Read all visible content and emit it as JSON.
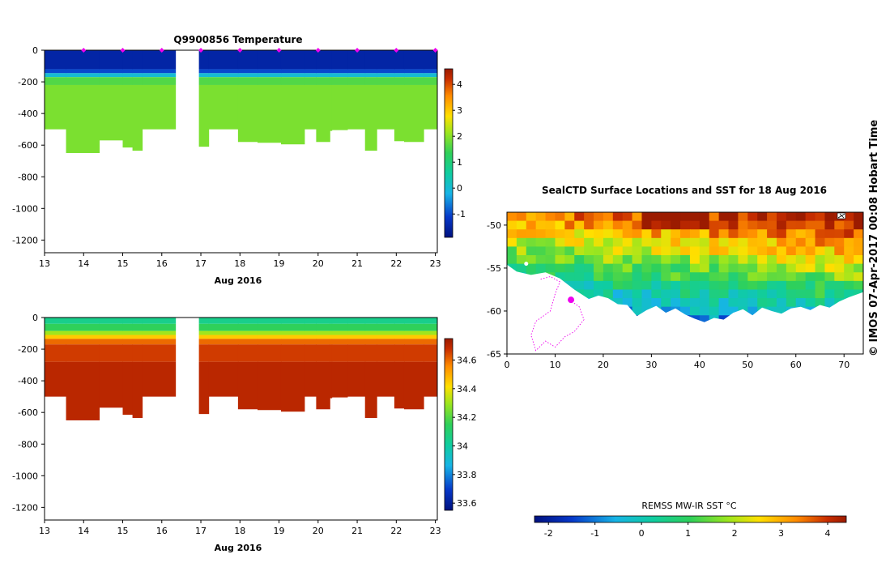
{
  "colors": {
    "cold": "#00117f",
    "cold2": "#0638c9",
    "cyan": "#17b4e6",
    "teal": "#0fcda0",
    "green": "#2fd05a",
    "lime": "#9be61e",
    "yellow": "#ffe000",
    "orange": "#ff8b00",
    "red": "#c82d00",
    "darkred": "#9b1b00",
    "land": "#ffffff",
    "track": "#ee00ee"
  },
  "chart_data": [
    {
      "id": "temperature-section",
      "type": "heatmap",
      "title": "Q9900856  Temperature",
      "xlabel": "Aug 2016",
      "ylabel": "",
      "xlim": [
        13,
        23.05
      ],
      "ylim": [
        -1280,
        0
      ],
      "xticks": [
        13,
        14,
        15,
        16,
        17,
        18,
        19,
        20,
        21,
        22,
        23
      ],
      "yticks": [
        0,
        -200,
        -400,
        -600,
        -800,
        -1000,
        -1200
      ],
      "gap": [
        16.35,
        16.95
      ],
      "surface_markers": [
        14.0,
        15.0,
        16.0,
        17.0,
        18.0,
        19.0,
        20.0,
        21.0,
        22.0,
        23.0
      ],
      "profile_bottoms": [
        {
          "x0": 13.0,
          "x1": 13.55,
          "depth": -500
        },
        {
          "x0": 13.55,
          "x1": 14.4,
          "depth": -650
        },
        {
          "x0": 14.4,
          "x1": 15.0,
          "depth": -570
        },
        {
          "x0": 15.0,
          "x1": 15.25,
          "depth": -615
        },
        {
          "x0": 15.25,
          "x1": 15.5,
          "depth": -635
        },
        {
          "x0": 15.5,
          "x1": 16.35,
          "depth": -500
        },
        {
          "x0": 16.95,
          "x1": 17.2,
          "depth": -610
        },
        {
          "x0": 17.2,
          "x1": 17.95,
          "depth": -500
        },
        {
          "x0": 17.95,
          "x1": 18.45,
          "depth": -580
        },
        {
          "x0": 18.45,
          "x1": 19.05,
          "depth": -585
        },
        {
          "x0": 19.05,
          "x1": 19.65,
          "depth": -595
        },
        {
          "x0": 19.65,
          "x1": 19.95,
          "depth": -500
        },
        {
          "x0": 19.95,
          "x1": 20.3,
          "depth": -580
        },
        {
          "x0": 20.3,
          "x1": 20.35,
          "depth": -510
        },
        {
          "x0": 20.35,
          "x1": 20.75,
          "depth": -505
        },
        {
          "x0": 20.75,
          "x1": 21.2,
          "depth": -500
        },
        {
          "x0": 21.2,
          "x1": 21.5,
          "depth": -635
        },
        {
          "x0": 21.5,
          "x1": 21.95,
          "depth": -500
        },
        {
          "x0": 21.95,
          "x1": 22.2,
          "depth": -575
        },
        {
          "x0": 22.2,
          "x1": 22.7,
          "depth": -580
        },
        {
          "x0": 22.7,
          "x1": 23.05,
          "depth": -500
        }
      ],
      "layers": [
        {
          "from": 0,
          "to": -120,
          "value": -1.5
        },
        {
          "from": -120,
          "to": -145,
          "value": -1.0
        },
        {
          "from": -145,
          "to": -170,
          "value": 0.0
        },
        {
          "from": -170,
          "to": -220,
          "value": 1.6
        },
        {
          "from": -220,
          "to": -9999,
          "value": 1.9
        }
      ],
      "colorbar": {
        "min": -1.9,
        "max": 4.6,
        "ticks": [
          4,
          3,
          2,
          1,
          0,
          -1
        ]
      }
    },
    {
      "id": "salinity-section",
      "type": "heatmap",
      "title": "",
      "xlabel": "Aug 2016",
      "ylabel": "",
      "xlim": [
        13,
        23.05
      ],
      "ylim": [
        -1280,
        0
      ],
      "xticks": [
        13,
        14,
        15,
        16,
        17,
        18,
        19,
        20,
        21,
        22,
        23
      ],
      "yticks": [
        0,
        -200,
        -400,
        -600,
        -800,
        -1000,
        -1200
      ],
      "gap": [
        16.35,
        16.95
      ],
      "profile_bottoms": [
        {
          "x0": 13.0,
          "x1": 13.55,
          "depth": -500
        },
        {
          "x0": 13.55,
          "x1": 14.4,
          "depth": -650
        },
        {
          "x0": 14.4,
          "x1": 15.0,
          "depth": -570
        },
        {
          "x0": 15.0,
          "x1": 15.25,
          "depth": -615
        },
        {
          "x0": 15.25,
          "x1": 15.5,
          "depth": -635
        },
        {
          "x0": 15.5,
          "x1": 16.35,
          "depth": -500
        },
        {
          "x0": 16.95,
          "x1": 17.2,
          "depth": -610
        },
        {
          "x0": 17.2,
          "x1": 17.95,
          "depth": -500
        },
        {
          "x0": 17.95,
          "x1": 18.45,
          "depth": -580
        },
        {
          "x0": 18.45,
          "x1": 19.05,
          "depth": -585
        },
        {
          "x0": 19.05,
          "x1": 19.65,
          "depth": -595
        },
        {
          "x0": 19.65,
          "x1": 19.95,
          "depth": -500
        },
        {
          "x0": 19.95,
          "x1": 20.3,
          "depth": -580
        },
        {
          "x0": 20.3,
          "x1": 20.35,
          "depth": -510
        },
        {
          "x0": 20.35,
          "x1": 20.75,
          "depth": -505
        },
        {
          "x0": 20.75,
          "x1": 21.2,
          "depth": -500
        },
        {
          "x0": 21.2,
          "x1": 21.5,
          "depth": -635
        },
        {
          "x0": 21.5,
          "x1": 21.95,
          "depth": -500
        },
        {
          "x0": 21.95,
          "x1": 22.2,
          "depth": -575
        },
        {
          "x0": 22.2,
          "x1": 22.7,
          "depth": -580
        },
        {
          "x0": 22.7,
          "x1": 23.05,
          "depth": -500
        }
      ],
      "layers": [
        {
          "from": 0,
          "to": -40,
          "value": 34.05
        },
        {
          "from": -40,
          "to": -85,
          "value": 34.15
        },
        {
          "from": -85,
          "to": -110,
          "value": 34.3
        },
        {
          "from": -110,
          "to": -135,
          "value": 34.45
        },
        {
          "from": -135,
          "to": -170,
          "value": 34.6
        },
        {
          "from": -170,
          "to": -280,
          "value": 34.66
        },
        {
          "from": -280,
          "to": -9999,
          "value": 34.7
        }
      ],
      "colorbar": {
        "min": 33.55,
        "max": 34.75,
        "ticks": [
          34.6,
          34.4,
          34.2,
          34,
          33.8,
          33.6
        ]
      }
    },
    {
      "id": "sst-map",
      "type": "heatmap",
      "title": "SealCTD Surface Locations and SST for 18 Aug 2016",
      "xlabel": "",
      "ylabel": "",
      "xlim": [
        0,
        74
      ],
      "ylim": [
        -65,
        -48.5
      ],
      "xticks": [
        0,
        10,
        20,
        30,
        40,
        50,
        60,
        70
      ],
      "yticks": [
        -50,
        -55,
        -60,
        -65
      ],
      "colorbar": {
        "label": "REMSS MW-IR SST °C",
        "min": -2.3,
        "max": 4.4,
        "ticks": [
          -2,
          -1,
          0,
          1,
          2,
          3,
          4
        ]
      },
      "seal_location": {
        "lon": 13.3,
        "lat": -58.7
      },
      "ice_edge": [
        [
          0,
          -54.6
        ],
        [
          2,
          -55.4
        ],
        [
          5,
          -55.8
        ],
        [
          8,
          -55.5
        ],
        [
          11,
          -56.2
        ],
        [
          14,
          -57.5
        ],
        [
          17,
          -58.6
        ],
        [
          19,
          -58.2
        ],
        [
          21,
          -58.5
        ],
        [
          23,
          -59.2
        ],
        [
          25,
          -59.3
        ],
        [
          27,
          -60.6
        ],
        [
          29,
          -59.9
        ],
        [
          31,
          -59.4
        ],
        [
          33,
          -60.2
        ],
        [
          35,
          -59.7
        ],
        [
          37,
          -60.4
        ],
        [
          39,
          -60.9
        ],
        [
          41,
          -61.3
        ],
        [
          43,
          -60.8
        ],
        [
          45,
          -61.0
        ],
        [
          47,
          -60.2
        ],
        [
          49,
          -59.8
        ],
        [
          51,
          -60.5
        ],
        [
          53,
          -59.6
        ],
        [
          55,
          -60.0
        ],
        [
          57,
          -60.3
        ],
        [
          59,
          -59.7
        ],
        [
          61,
          -59.5
        ],
        [
          63,
          -59.9
        ],
        [
          65,
          -59.3
        ],
        [
          67,
          -59.6
        ],
        [
          69,
          -58.9
        ],
        [
          71,
          -58.4
        ],
        [
          74,
          -57.8
        ]
      ]
    }
  ],
  "side_label": "© IMOS 07-Apr-2017 00:08 Hobart Time"
}
